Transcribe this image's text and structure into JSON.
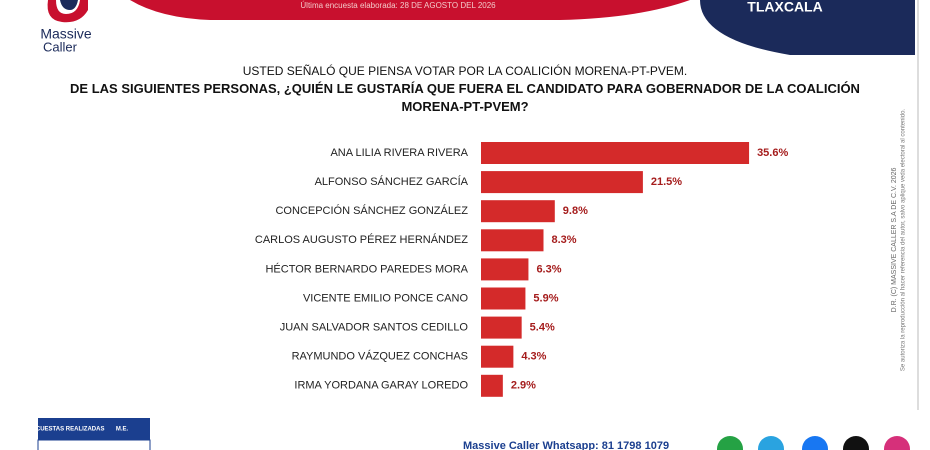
{
  "header": {
    "survey_date": "Última encuesta elaborada: 28 DE AGOSTO DEL 2026",
    "state": "TLAXCALA",
    "logo_lines": [
      "Massive",
      "Caller"
    ]
  },
  "chart_data": {
    "type": "bar",
    "orientation": "horizontal",
    "subtitle": "USTED SEÑALÓ QUE PIENSA VOTAR POR LA COALICIÓN MORENA-PT-PVEM.",
    "title": "DE LAS SIGUIENTES PERSONAS, ¿QUIÉN LE GUSTARÍA QUE FUERA EL CANDIDATO PARA GOBERNADOR DE LA COALICIÓN MORENA-PT-PVEM?",
    "categories": [
      "ANA LILIA RIVERA RIVERA",
      "ALFONSO SÁNCHEZ GARCÍA",
      "CONCEPCIÓN SÁNCHEZ GONZÁLEZ",
      "CARLOS AUGUSTO PÉREZ HERNÁNDEZ",
      "HÉCTOR BERNARDO PAREDES MORA",
      "VICENTE EMILIO PONCE CANO",
      "JUAN SALVADOR SANTOS CEDILLO",
      "RAYMUNDO VÁZQUEZ CONCHAS",
      "IRMA YORDANA GARAY LOREDO"
    ],
    "values": [
      35.6,
      21.5,
      9.8,
      8.3,
      6.3,
      5.9,
      5.4,
      4.3,
      2.9
    ],
    "value_labels": [
      "35.6%",
      "21.5%",
      "9.8%",
      "8.3%",
      "6.3%",
      "5.9%",
      "5.4%",
      "4.3%",
      "2.9%"
    ],
    "color": "#d42a2a"
  },
  "side_notes": [
    "D.R. (C) MASSIVE CALLER S.A DE C.V. 2026",
    "Se autoriza la reproducción al hacer referencia del autor, salvo aplique veda electoral al contenido."
  ],
  "footer": {
    "table_headers": [
      "ENCUESTAS REALIZADAS",
      "M.E."
    ],
    "whatsapp": "Massive Caller Whatsapp: 81 1798 1079"
  }
}
